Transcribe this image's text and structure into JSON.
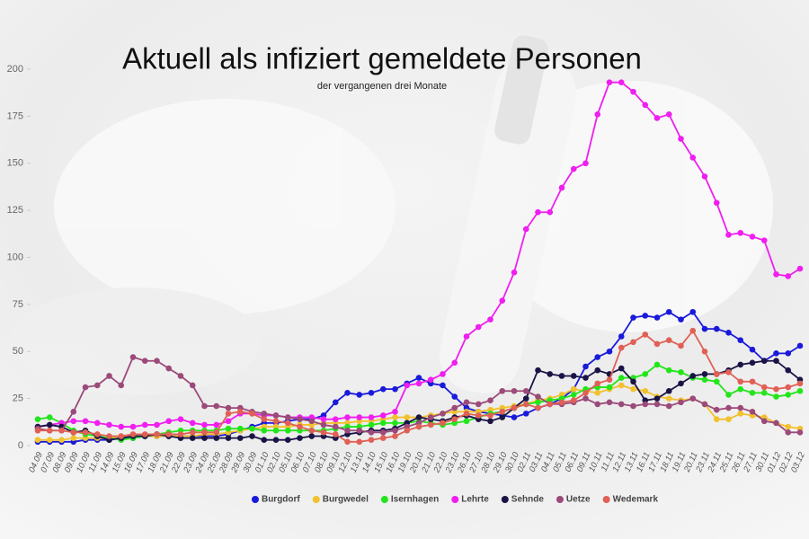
{
  "chart_data": {
    "type": "line",
    "title": "Aktuell als infiziert gemeldete Personen",
    "subtitle": "der vergangenen drei Monate",
    "categories": [
      "04.09",
      "07.09",
      "08.09",
      "09.09",
      "10.09",
      "11.09",
      "14.09",
      "15.09",
      "16.09",
      "17.09",
      "18.09",
      "21.09",
      "22.09",
      "23.09",
      "24.09",
      "25.09",
      "28.09",
      "29.09",
      "30.09",
      "01.10",
      "02.10",
      "05.10",
      "06.10",
      "07.10",
      "08.10",
      "09.10",
      "12.10",
      "13.10",
      "14.10",
      "15.10",
      "16.10",
      "19.10",
      "20.10",
      "21.10",
      "22.10",
      "23.10",
      "26.10",
      "27.10",
      "28.10",
      "29.10",
      "30.10",
      "02.11",
      "03.11",
      "04.11",
      "05.11",
      "06.11",
      "09.11",
      "10.11",
      "11.11",
      "12.11",
      "13.11",
      "16.11",
      "17.11",
      "18.11",
      "19.11",
      "20.11",
      "23.11",
      "24.11",
      "25.11",
      "26.11",
      "27.11",
      "30.11",
      "01.12",
      "02.12",
      "03.12"
    ],
    "ylim": [
      0,
      200
    ],
    "yticks": [
      0,
      25,
      50,
      75,
      100,
      125,
      150,
      175,
      200
    ],
    "legend": "bottom",
    "series": [
      {
        "name": "Burgdorf",
        "color": "#1a1adb",
        "values": [
          2,
          2,
          2,
          2,
          3,
          3,
          3,
          4,
          4,
          5,
          5,
          5,
          5,
          5,
          5,
          5,
          6,
          8,
          10,
          12,
          12,
          13,
          14,
          14,
          16,
          23,
          28,
          27,
          28,
          30,
          30,
          33,
          36,
          33,
          32,
          26,
          20,
          18,
          17,
          16,
          15,
          17,
          20,
          22,
          25,
          30,
          42,
          47,
          50,
          58,
          68,
          69,
          68,
          71,
          67,
          71,
          62,
          62,
          60,
          56,
          51,
          45,
          49,
          49,
          53
        ]
      },
      {
        "name": "Burgwedel",
        "color": "#f2c12e",
        "values": [
          3,
          3,
          3,
          4,
          4,
          4,
          4,
          5,
          5,
          5,
          5,
          5,
          5,
          5,
          6,
          6,
          7,
          8,
          9,
          10,
          10,
          10,
          11,
          11,
          12,
          12,
          12,
          13,
          13,
          14,
          15,
          15,
          15,
          16,
          17,
          18,
          18,
          18,
          19,
          20,
          21,
          22,
          24,
          25,
          27,
          30,
          29,
          28,
          30,
          32,
          30,
          29,
          26,
          25,
          24,
          25,
          22,
          14,
          14,
          17,
          16,
          15,
          12,
          10,
          9
        ]
      },
      {
        "name": "Isernhagen",
        "color": "#22e51a",
        "values": [
          14,
          15,
          12,
          8,
          6,
          5,
          4,
          3,
          4,
          5,
          6,
          7,
          8,
          8,
          8,
          8,
          9,
          9,
          9,
          8,
          8,
          8,
          8,
          8,
          8,
          9,
          10,
          10,
          11,
          12,
          12,
          12,
          13,
          12,
          11,
          12,
          13,
          15,
          17,
          18,
          20,
          22,
          23,
          24,
          25,
          27,
          30,
          31,
          31,
          36,
          36,
          38,
          43,
          40,
          39,
          36,
          35,
          34,
          27,
          30,
          28,
          28,
          26,
          27,
          29
        ]
      },
      {
        "name": "Lehrte",
        "color": "#f01ef0",
        "values": [
          10,
          11,
          12,
          13,
          13,
          12,
          11,
          10,
          10,
          11,
          11,
          13,
          14,
          12,
          11,
          11,
          13,
          17,
          17,
          16,
          16,
          15,
          15,
          15,
          14,
          14,
          15,
          15,
          15,
          16,
          18,
          32,
          33,
          35,
          38,
          44,
          58,
          63,
          67,
          77,
          92,
          115,
          124,
          124,
          137,
          147,
          150,
          176,
          193,
          193,
          188,
          181,
          174,
          176,
          163,
          153,
          143,
          129,
          112,
          113,
          111,
          109,
          91,
          90,
          94
        ]
      },
      {
        "name": "Sehnde",
        "color": "#1a1446",
        "values": [
          10,
          11,
          10,
          7,
          8,
          5,
          3,
          4,
          5,
          5,
          6,
          5,
          4,
          4,
          4,
          4,
          4,
          4,
          5,
          3,
          3,
          3,
          4,
          5,
          5,
          4,
          6,
          7,
          8,
          8,
          9,
          12,
          15,
          14,
          13,
          15,
          16,
          14,
          13,
          15,
          20,
          25,
          40,
          38,
          37,
          37,
          36,
          40,
          38,
          41,
          34,
          24,
          25,
          29,
          33,
          37,
          38,
          38,
          40,
          43,
          44,
          45,
          45,
          40,
          35
        ]
      },
      {
        "name": "Uetze",
        "color": "#9b4a7a",
        "values": [
          9,
          8,
          8,
          18,
          31,
          32,
          37,
          32,
          47,
          45,
          45,
          41,
          37,
          32,
          21,
          21,
          20,
          20,
          18,
          17,
          16,
          15,
          14,
          13,
          11,
          10,
          8,
          8,
          7,
          7,
          8,
          10,
          12,
          15,
          17,
          20,
          23,
          22,
          24,
          29,
          29,
          29,
          26,
          22,
          22,
          23,
          25,
          22,
          23,
          22,
          21,
          22,
          22,
          21,
          23,
          25,
          22,
          19,
          20,
          20,
          18,
          13,
          12,
          7,
          7
        ]
      },
      {
        "name": "Wedemark",
        "color": "#e06055",
        "values": [
          8,
          8,
          8,
          7,
          7,
          6,
          5,
          5,
          6,
          6,
          6,
          6,
          6,
          7,
          7,
          7,
          17,
          18,
          17,
          14,
          13,
          12,
          10,
          8,
          7,
          6,
          2,
          2,
          3,
          4,
          5,
          8,
          10,
          11,
          12,
          14,
          17,
          16,
          16,
          18,
          20,
          22,
          20,
          22,
          23,
          24,
          28,
          33,
          35,
          52,
          55,
          59,
          54,
          56,
          53,
          61,
          50,
          38,
          39,
          34,
          34,
          31,
          30,
          31,
          33
        ]
      }
    ]
  }
}
